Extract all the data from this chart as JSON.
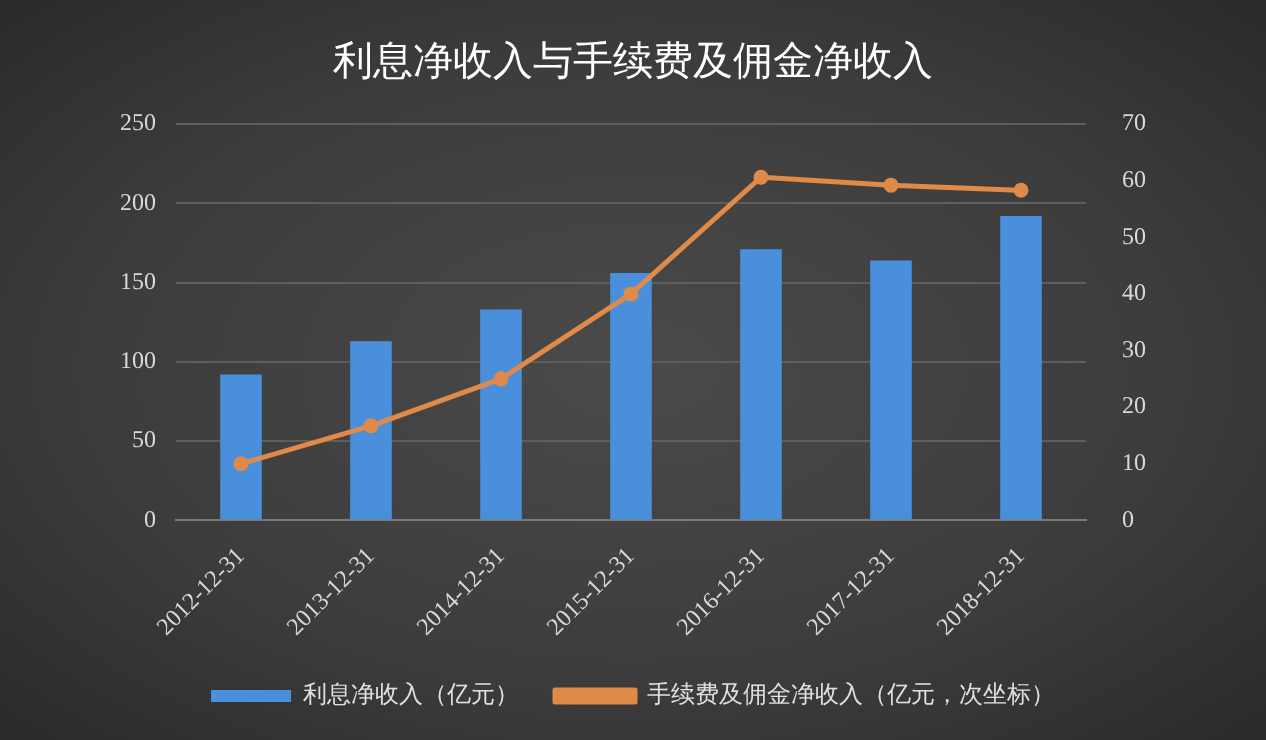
{
  "chart_data": {
    "type": "bar",
    "title": "利息净收入与手续费及佣金净收入",
    "categories": [
      "2012-12-31",
      "2013-12-31",
      "2014-12-31",
      "2015-12-31",
      "2016-12-31",
      "2017-12-31",
      "2018-12-31"
    ],
    "series": [
      {
        "name": "利息净收入（亿元）",
        "color": "#4a8fdc",
        "values": [
          92,
          113,
          133,
          156,
          171,
          164,
          192
        ]
      },
      {
        "name": "手续费及佣金净收入（亿元，次坐标）",
        "type": "line",
        "axis": "y2",
        "color": "#e08a4a",
        "values": [
          10,
          16.7,
          25,
          40,
          60.6,
          59.2,
          58.3
        ]
      }
    ],
    "ylim": [
      0,
      250
    ],
    "yticks": [
      0,
      50,
      100,
      150,
      200,
      250
    ],
    "y2lim": [
      0,
      70
    ],
    "y2ticks": [
      0,
      10,
      20,
      30,
      40,
      50,
      60,
      70
    ],
    "grid": "y",
    "legend": "bottom",
    "marker": "circle",
    "line_style": "solid"
  }
}
